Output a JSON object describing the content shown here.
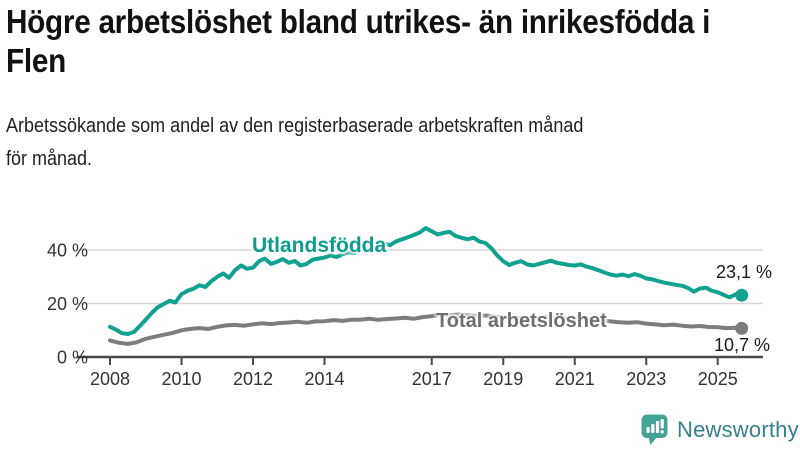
{
  "header": {
    "title_line1": "Högre arbetslöshet bland utrikes- än inrikesfödda i",
    "title_line2": "Flen",
    "subtitle_line1": "Arbetssökande som andel av den registerbaserade arbetskraften månad",
    "subtitle_line2": "för månad."
  },
  "chart_data": {
    "type": "line",
    "title": "Högre arbetslöshet bland utrikes- än inrikesfödda i Flen",
    "subtitle": "Arbetssökande som andel av den registerbaserade arbetskraften månad för månad.",
    "grid": "horizontal-only",
    "legend_position": "inline-labels-on-lines",
    "x_axis": {
      "ticks": [
        2008,
        2010,
        2012,
        2014,
        2017,
        2019,
        2021,
        2023,
        2025
      ],
      "range": [
        2007.1,
        2026.3
      ]
    },
    "y_axis": {
      "unit": "%",
      "ticks": [
        0,
        20,
        40
      ],
      "tick_labels": [
        "0 %",
        "20 %",
        "40 %"
      ],
      "range": [
        0,
        55
      ]
    },
    "colors": {
      "utlandsfodda": "#10a191",
      "total": "#7d7d7d",
      "gridline": "#d8d8d8",
      "axis": "#4a4a4a",
      "tick_text": "#333333"
    },
    "series": [
      {
        "name": "Utlandsfödda",
        "color": "#10a191",
        "end_value": 23.1,
        "end_label": "23,1 %",
        "points": [
          [
            2008.0,
            11.3
          ],
          [
            2008.17,
            10.2
          ],
          [
            2008.33,
            8.9
          ],
          [
            2008.5,
            8.6
          ],
          [
            2008.67,
            9.4
          ],
          [
            2008.83,
            11.5
          ],
          [
            2009.0,
            14.0
          ],
          [
            2009.17,
            16.5
          ],
          [
            2009.33,
            18.5
          ],
          [
            2009.5,
            19.8
          ],
          [
            2009.67,
            21.0
          ],
          [
            2009.83,
            20.4
          ],
          [
            2010.0,
            23.5
          ],
          [
            2010.17,
            24.8
          ],
          [
            2010.33,
            25.5
          ],
          [
            2010.5,
            26.8
          ],
          [
            2010.67,
            26.2
          ],
          [
            2010.83,
            28.3
          ],
          [
            2011.0,
            30.0
          ],
          [
            2011.17,
            31.2
          ],
          [
            2011.33,
            29.6
          ],
          [
            2011.5,
            32.5
          ],
          [
            2011.67,
            34.2
          ],
          [
            2011.83,
            33.0
          ],
          [
            2012.0,
            33.4
          ],
          [
            2012.17,
            35.8
          ],
          [
            2012.33,
            36.8
          ],
          [
            2012.5,
            34.8
          ],
          [
            2012.67,
            35.6
          ],
          [
            2012.83,
            36.6
          ],
          [
            2013.0,
            35.2
          ],
          [
            2013.17,
            35.9
          ],
          [
            2013.33,
            34.2
          ],
          [
            2013.5,
            34.8
          ],
          [
            2013.67,
            36.4
          ],
          [
            2013.83,
            36.8
          ],
          [
            2014.0,
            37.2
          ],
          [
            2014.17,
            38.0
          ],
          [
            2014.33,
            37.4
          ],
          [
            2014.5,
            38.4
          ],
          [
            2014.67,
            39.2
          ],
          [
            2014.83,
            38.8
          ],
          [
            2015.0,
            40.2
          ],
          [
            2015.17,
            41.0
          ],
          [
            2015.33,
            40.4
          ],
          [
            2015.5,
            41.6
          ],
          [
            2015.67,
            42.4
          ],
          [
            2015.83,
            41.8
          ],
          [
            2016.0,
            43.2
          ],
          [
            2016.17,
            44.0
          ],
          [
            2016.33,
            44.8
          ],
          [
            2016.5,
            45.6
          ],
          [
            2016.67,
            46.6
          ],
          [
            2016.83,
            48.2
          ],
          [
            2017.0,
            47.0
          ],
          [
            2017.17,
            45.8
          ],
          [
            2017.33,
            46.4
          ],
          [
            2017.5,
            46.8
          ],
          [
            2017.67,
            45.2
          ],
          [
            2017.83,
            44.6
          ],
          [
            2018.0,
            44.0
          ],
          [
            2018.17,
            44.6
          ],
          [
            2018.33,
            43.2
          ],
          [
            2018.5,
            42.6
          ],
          [
            2018.67,
            40.6
          ],
          [
            2018.83,
            38.0
          ],
          [
            2019.0,
            35.8
          ],
          [
            2019.17,
            34.4
          ],
          [
            2019.33,
            35.2
          ],
          [
            2019.5,
            35.8
          ],
          [
            2019.67,
            34.6
          ],
          [
            2019.83,
            34.2
          ],
          [
            2020.0,
            34.8
          ],
          [
            2020.17,
            35.4
          ],
          [
            2020.33,
            36.0
          ],
          [
            2020.5,
            35.2
          ],
          [
            2020.67,
            34.8
          ],
          [
            2020.83,
            34.4
          ],
          [
            2021.0,
            34.2
          ],
          [
            2021.17,
            34.6
          ],
          [
            2021.33,
            33.8
          ],
          [
            2021.5,
            33.2
          ],
          [
            2021.67,
            32.4
          ],
          [
            2021.83,
            31.6
          ],
          [
            2022.0,
            30.8
          ],
          [
            2022.17,
            30.4
          ],
          [
            2022.33,
            30.8
          ],
          [
            2022.5,
            30.2
          ],
          [
            2022.67,
            31.0
          ],
          [
            2022.83,
            30.4
          ],
          [
            2023.0,
            29.4
          ],
          [
            2023.17,
            29.0
          ],
          [
            2023.33,
            28.4
          ],
          [
            2023.5,
            27.8
          ],
          [
            2023.67,
            27.4
          ],
          [
            2023.83,
            27.0
          ],
          [
            2024.0,
            26.6
          ],
          [
            2024.17,
            25.8
          ],
          [
            2024.33,
            24.4
          ],
          [
            2024.5,
            25.6
          ],
          [
            2024.67,
            25.9
          ],
          [
            2024.83,
            24.8
          ],
          [
            2025.0,
            24.2
          ],
          [
            2025.17,
            23.2
          ],
          [
            2025.33,
            22.3
          ],
          [
            2025.5,
            23.4
          ],
          [
            2025.67,
            23.1
          ]
        ]
      },
      {
        "name": "Total arbetslöshet",
        "color": "#7d7d7d",
        "end_value": 10.7,
        "end_label": "10,7 %",
        "points": [
          [
            2008.0,
            6.2
          ],
          [
            2008.25,
            5.3
          ],
          [
            2008.5,
            4.9
          ],
          [
            2008.75,
            5.5
          ],
          [
            2009.0,
            6.8
          ],
          [
            2009.25,
            7.6
          ],
          [
            2009.5,
            8.3
          ],
          [
            2009.75,
            9.0
          ],
          [
            2010.0,
            10.0
          ],
          [
            2010.25,
            10.5
          ],
          [
            2010.5,
            10.8
          ],
          [
            2010.75,
            10.5
          ],
          [
            2011.0,
            11.3
          ],
          [
            2011.25,
            11.8
          ],
          [
            2011.5,
            12.0
          ],
          [
            2011.75,
            11.7
          ],
          [
            2012.0,
            12.2
          ],
          [
            2012.25,
            12.6
          ],
          [
            2012.5,
            12.3
          ],
          [
            2012.75,
            12.7
          ],
          [
            2013.0,
            12.9
          ],
          [
            2013.25,
            13.2
          ],
          [
            2013.5,
            12.8
          ],
          [
            2013.75,
            13.3
          ],
          [
            2014.0,
            13.4
          ],
          [
            2014.25,
            13.8
          ],
          [
            2014.5,
            13.5
          ],
          [
            2014.75,
            13.9
          ],
          [
            2015.0,
            14.0
          ],
          [
            2015.25,
            14.3
          ],
          [
            2015.5,
            13.9
          ],
          [
            2015.75,
            14.2
          ],
          [
            2016.0,
            14.4
          ],
          [
            2016.25,
            14.7
          ],
          [
            2016.5,
            14.3
          ],
          [
            2016.75,
            14.9
          ],
          [
            2017.0,
            15.3
          ],
          [
            2017.25,
            15.9
          ],
          [
            2017.5,
            15.6
          ],
          [
            2017.75,
            15.9
          ],
          [
            2018.0,
            15.6
          ],
          [
            2018.25,
            15.3
          ],
          [
            2018.5,
            15.5
          ],
          [
            2018.75,
            15.1
          ],
          [
            2019.0,
            14.7
          ],
          [
            2019.25,
            14.4
          ],
          [
            2019.5,
            14.7
          ],
          [
            2019.75,
            14.3
          ],
          [
            2020.0,
            14.5
          ],
          [
            2020.25,
            15.0
          ],
          [
            2020.5,
            14.7
          ],
          [
            2020.75,
            14.4
          ],
          [
            2021.0,
            14.3
          ],
          [
            2021.25,
            14.5
          ],
          [
            2021.5,
            14.0
          ],
          [
            2021.75,
            13.7
          ],
          [
            2022.0,
            13.3
          ],
          [
            2022.25,
            13.0
          ],
          [
            2022.5,
            12.8
          ],
          [
            2022.75,
            13.0
          ],
          [
            2023.0,
            12.5
          ],
          [
            2023.25,
            12.2
          ],
          [
            2023.5,
            11.9
          ],
          [
            2023.75,
            12.1
          ],
          [
            2024.0,
            11.7
          ],
          [
            2024.25,
            11.4
          ],
          [
            2024.5,
            11.6
          ],
          [
            2024.75,
            11.2
          ],
          [
            2025.0,
            11.1
          ],
          [
            2025.25,
            10.8
          ],
          [
            2025.5,
            10.9
          ],
          [
            2025.67,
            10.7
          ]
        ]
      }
    ]
  },
  "footer": {
    "brand": "Newsworthy",
    "brand_color": "#35808f",
    "logo_icon": "newsworthy-speech-bubble-bar-chart-icon",
    "logo_color": "#44a396"
  }
}
